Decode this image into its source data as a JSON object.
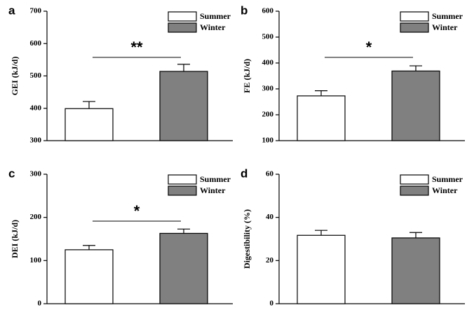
{
  "chart_data": [
    {
      "type": "bar",
      "panel": "a",
      "ylabel": "GEI (kJ/d)",
      "ylim": [
        300,
        700
      ],
      "yticks": [
        300,
        400,
        500,
        600,
        700
      ],
      "series": [
        {
          "name": "Summer",
          "color": "#ffffff",
          "values": [
            399
          ],
          "errors": [
            22
          ]
        },
        {
          "name": "Winter",
          "color": "#808080",
          "values": [
            514
          ],
          "errors": [
            22
          ]
        }
      ],
      "annotation": "**"
    },
    {
      "type": "bar",
      "panel": "b",
      "ylabel": "FE (kJ/d)",
      "ylim": [
        100,
        600
      ],
      "yticks": [
        100,
        200,
        300,
        400,
        500,
        600
      ],
      "series": [
        {
          "name": "Summer",
          "color": "#ffffff",
          "values": [
            273
          ],
          "errors": [
            20
          ]
        },
        {
          "name": "Winter",
          "color": "#808080",
          "values": [
            369
          ],
          "errors": [
            20
          ]
        }
      ],
      "annotation": "*"
    },
    {
      "type": "bar",
      "panel": "c",
      "ylabel": "DEI (kJ/d)",
      "ylim": [
        0,
        300
      ],
      "yticks": [
        0,
        100,
        200,
        300
      ],
      "series": [
        {
          "name": "Summer",
          "color": "#ffffff",
          "values": [
            125
          ],
          "errors": [
            10
          ]
        },
        {
          "name": "Winter",
          "color": "#808080",
          "values": [
            163
          ],
          "errors": [
            10
          ]
        }
      ],
      "annotation": "*"
    },
    {
      "type": "bar",
      "panel": "d",
      "ylabel": "Digestibility (%)",
      "ylim": [
        0,
        60
      ],
      "yticks": [
        0,
        20,
        40,
        60
      ],
      "series": [
        {
          "name": "Summer",
          "color": "#ffffff",
          "values": [
            31.7
          ],
          "errors": [
            2.3
          ]
        },
        {
          "name": "Winter",
          "color": "#808080",
          "values": [
            30.5
          ],
          "errors": [
            2.5
          ]
        }
      ]
    }
  ]
}
